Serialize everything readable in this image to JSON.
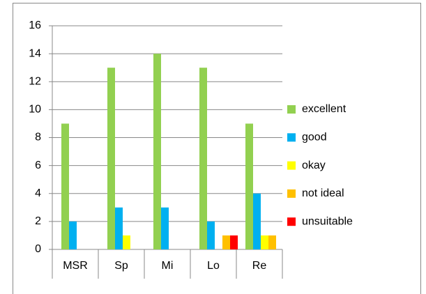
{
  "chart_data": {
    "type": "bar",
    "categories": [
      "MSR",
      "Sp",
      "Mi",
      "Lo",
      "Re"
    ],
    "series": [
      {
        "name": "excellent",
        "color": "#92d050",
        "values": [
          9,
          13,
          14,
          13,
          9
        ]
      },
      {
        "name": "good",
        "color": "#00b0f0",
        "values": [
          2,
          3,
          3,
          2,
          4
        ]
      },
      {
        "name": "okay",
        "color": "#ffff00",
        "values": [
          0,
          1,
          0,
          0,
          1
        ]
      },
      {
        "name": "not ideal",
        "color": "#ffc000",
        "values": [
          0,
          0,
          0,
          1,
          1
        ]
      },
      {
        "name": "unsuitable",
        "color": "#ff0000",
        "values": [
          0,
          0,
          0,
          1,
          0
        ]
      }
    ],
    "ylim": [
      0,
      16
    ],
    "yticks": [
      0,
      2,
      4,
      6,
      8,
      10,
      12,
      14,
      16
    ],
    "grid": true,
    "legend": "right"
  }
}
